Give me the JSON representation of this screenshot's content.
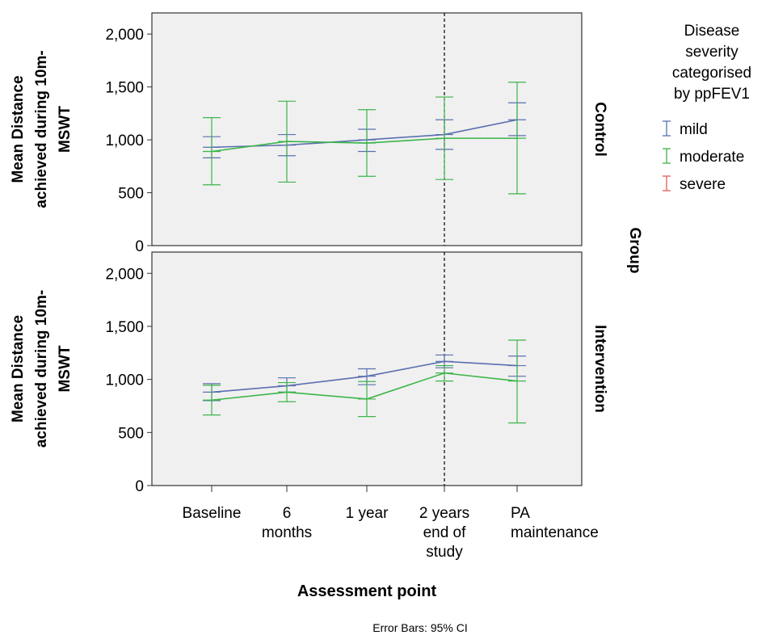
{
  "chart_data": {
    "type": "line",
    "error_bars": "95% CI",
    "footnote": "Error Bars: 95% CI",
    "xlabel": "Assessment point",
    "ylabel": [
      "Mean Distance",
      "achieved during 10m-",
      "MSWT"
    ],
    "categories": [
      [
        "Baseline"
      ],
      [
        "6",
        "months"
      ],
      [
        "1 year"
      ],
      [
        "2 years",
        "end of",
        "study"
      ],
      [
        "PA",
        "maintenance"
      ]
    ],
    "y_ticks": [
      "0",
      "500",
      "1,000",
      "1,500",
      "2,000"
    ],
    "y_tick_values": [
      0,
      500,
      1000,
      1500,
      2000
    ],
    "ylim": [
      0,
      2200
    ],
    "grid": false,
    "reference_line": {
      "category_index": 3,
      "style": "dashed"
    },
    "legend": {
      "title": [
        "Disease",
        "severity",
        "categorised",
        "by ppFEV1"
      ],
      "placement": "right",
      "entries": [
        {
          "label": "mild",
          "color": "#5a6fb0"
        },
        {
          "label": "moderate",
          "color": "#3cb54a"
        },
        {
          "label": "severe",
          "color": "#e05a5a"
        }
      ]
    },
    "facet_label": "Group",
    "panels": [
      {
        "name": "Control",
        "series": [
          {
            "name": "mild",
            "color": "#5a6fb0",
            "values": [
              930,
              950,
              1000,
              1050,
              1190
            ],
            "ci_low": [
              830,
              850,
              890,
              910,
              1040
            ],
            "ci_high": [
              1030,
              1050,
              1100,
              1190,
              1350
            ]
          },
          {
            "name": "moderate",
            "color": "#3cb54a",
            "values": [
              890,
              985,
              970,
              1015,
              1015
            ],
            "ci_low": [
              575,
              600,
              655,
              625,
              490
            ],
            "ci_high": [
              1210,
              1365,
              1285,
              1405,
              1545
            ]
          }
        ]
      },
      {
        "name": "Intervention",
        "series": [
          {
            "name": "mild",
            "color": "#5a6fb0",
            "values": [
              880,
              940,
              1030,
              1170,
              1130
            ],
            "ci_low": [
              800,
              880,
              950,
              1110,
              1030
            ],
            "ci_high": [
              960,
              1015,
              1100,
              1230,
              1220
            ]
          },
          {
            "name": "moderate",
            "color": "#3cb54a",
            "values": [
              805,
              880,
              815,
              1060,
              985
            ],
            "ci_low": [
              665,
              790,
              650,
              985,
              590
            ],
            "ci_high": [
              945,
              970,
              980,
              1130,
              1370
            ]
          }
        ]
      }
    ]
  }
}
